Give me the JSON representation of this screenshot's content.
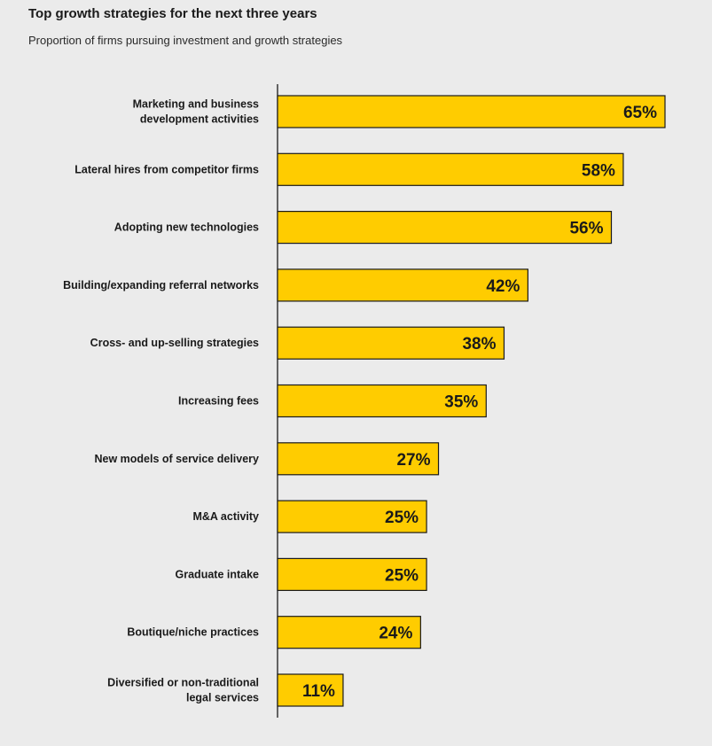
{
  "chart_data": {
    "type": "bar",
    "orientation": "horizontal",
    "title": "Top growth strategies for the next three years",
    "subtitle": "Proportion of firms pursuing investment and growth strategies",
    "xlabel": "",
    "ylabel": "",
    "xlim": [
      0,
      65
    ],
    "grid": false,
    "categories": [
      [
        "Marketing and business",
        "development activities"
      ],
      [
        "Lateral hires from competitor firms"
      ],
      [
        "Adopting new technologies"
      ],
      [
        "Building/expanding referral networks"
      ],
      [
        "Cross- and up-selling strategies"
      ],
      [
        "Increasing fees"
      ],
      [
        "New models of service delivery"
      ],
      [
        "M&A activity"
      ],
      [
        "Graduate intake"
      ],
      [
        "Boutique/niche practices"
      ],
      [
        "Diversified or non-traditional",
        "legal services"
      ]
    ],
    "values": [
      65,
      58,
      56,
      42,
      38,
      35,
      27,
      25,
      25,
      24,
      11
    ],
    "value_suffix": "%",
    "bar_color": "#ffcc00",
    "bar_stroke": "#1a1a1a"
  }
}
